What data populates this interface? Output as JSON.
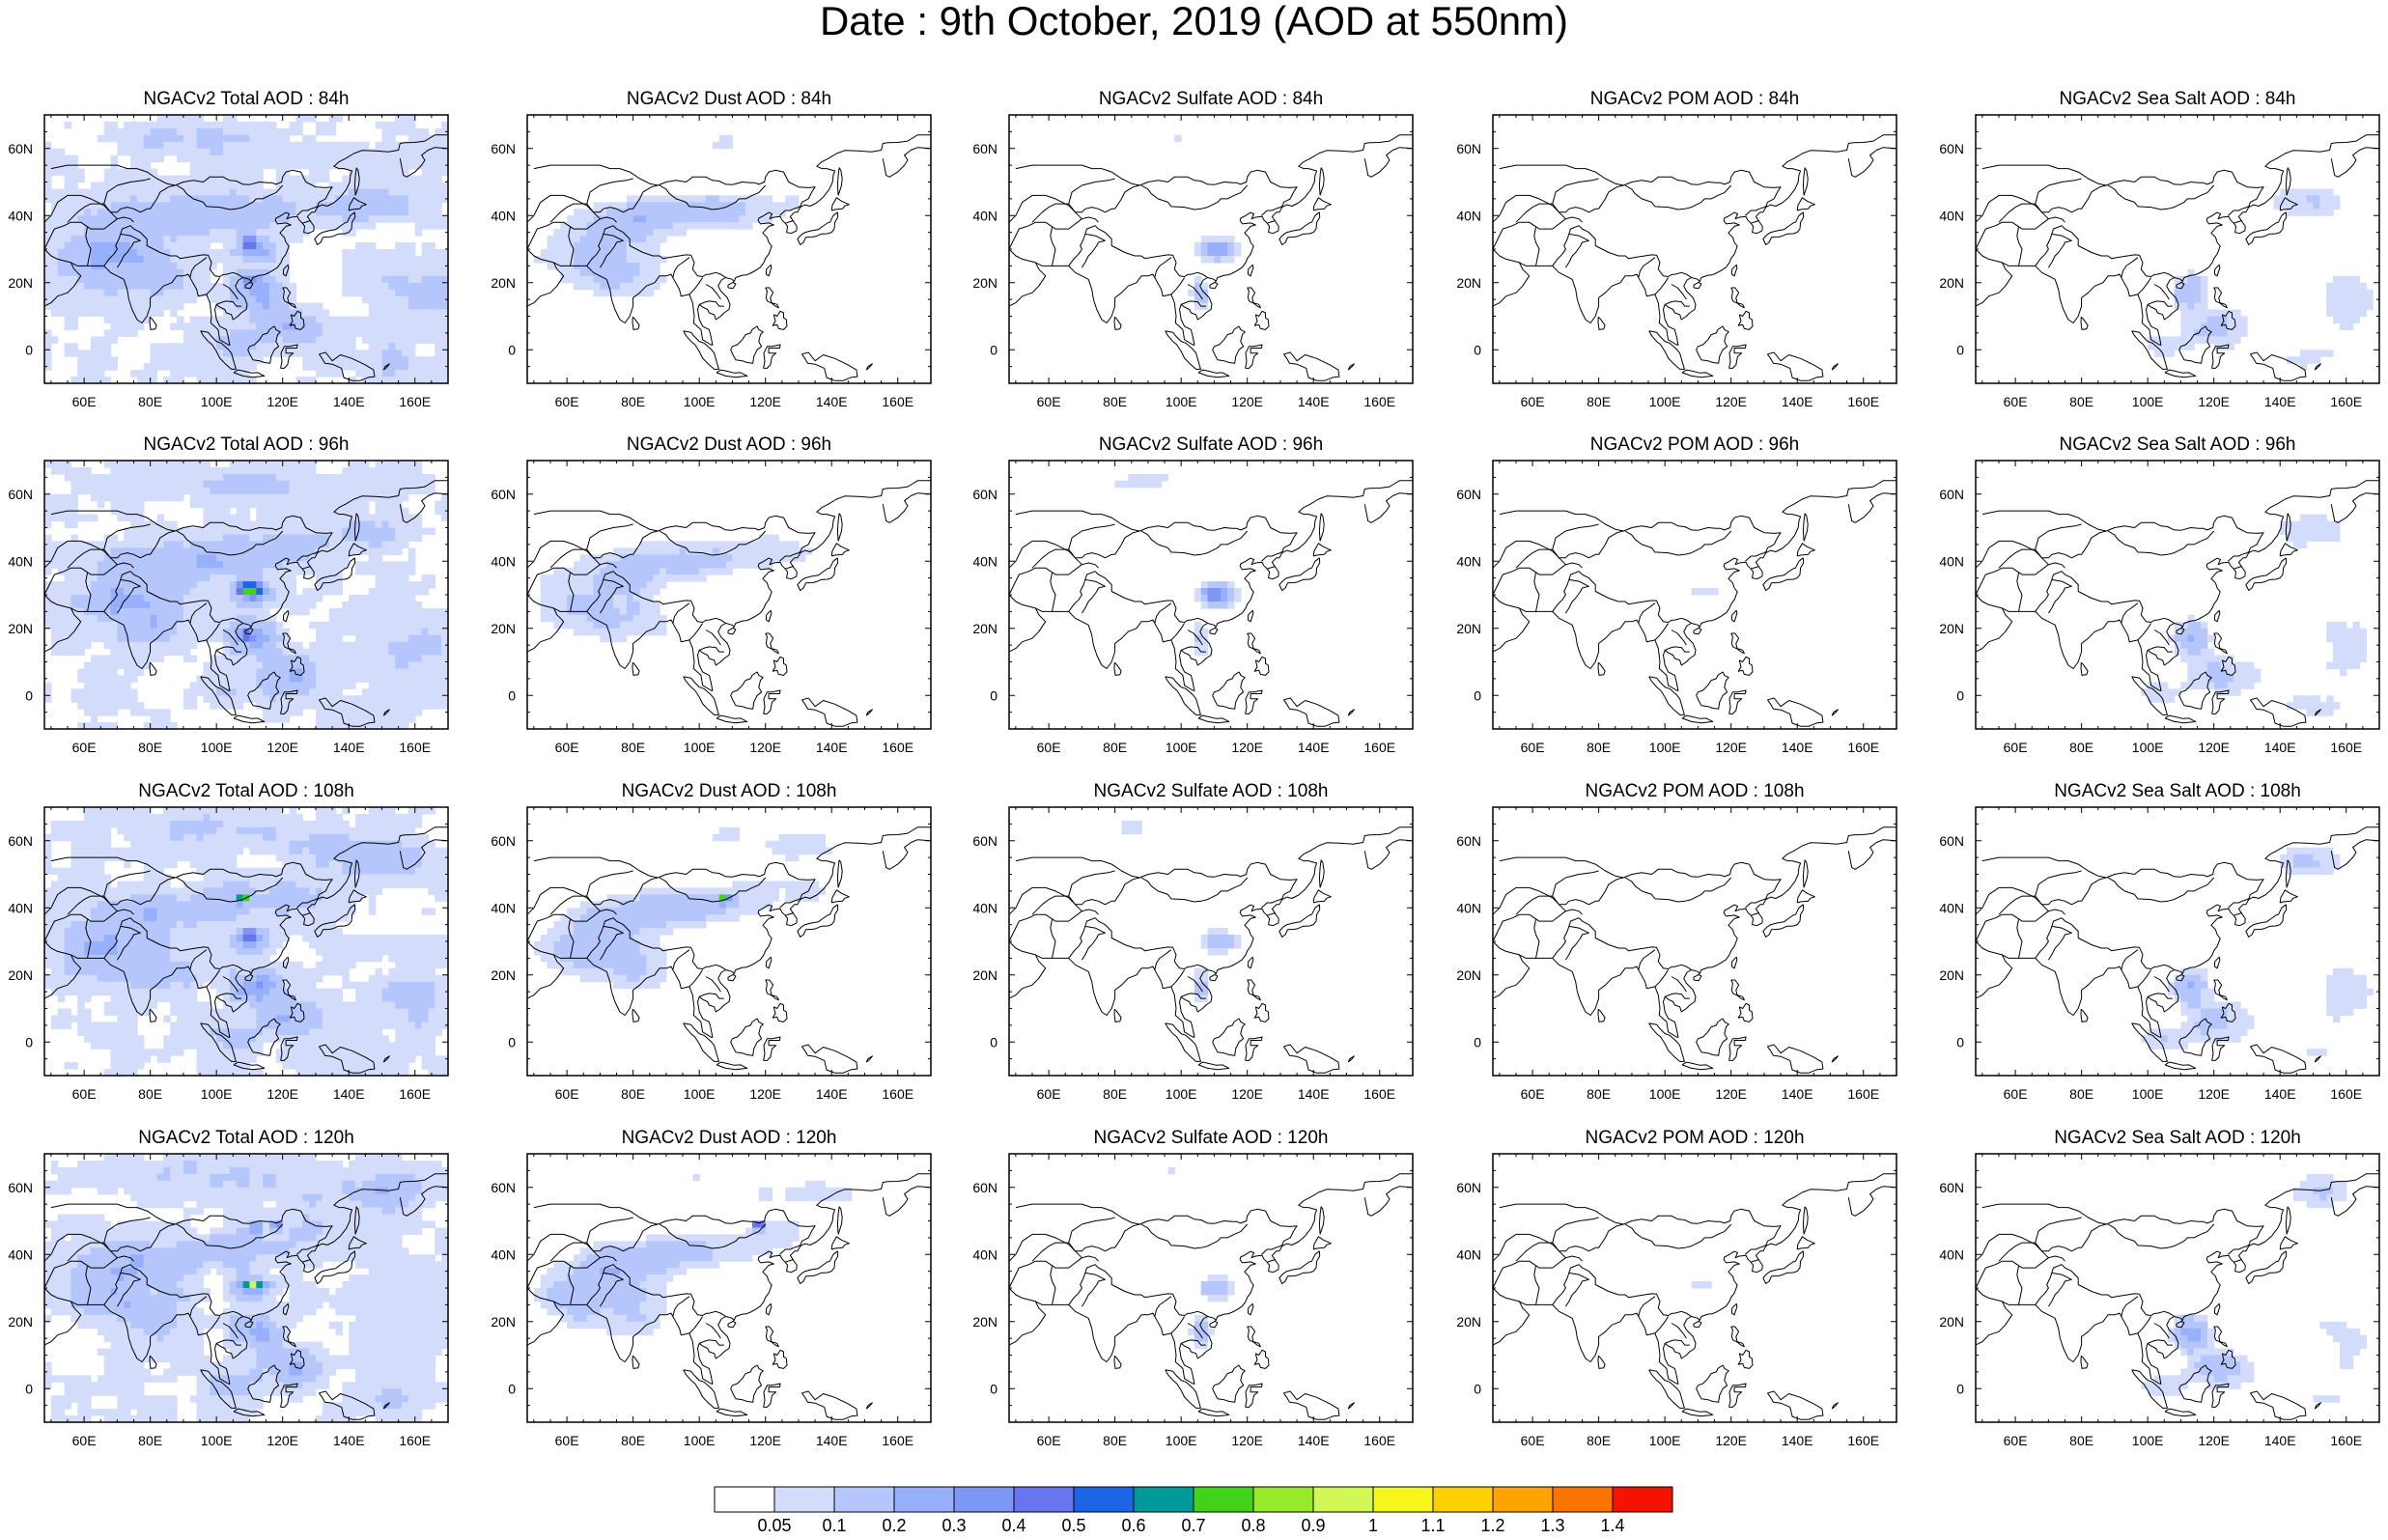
{
  "title": "Date : 9th October, 2019 (AOD at 550nm)",
  "panel_titles": [
    [
      "NGACv2 Total AOD : 84h",
      "NGACv2 Dust AOD : 84h",
      "NGACv2 Sulfate AOD : 84h",
      "NGACv2 POM AOD : 84h",
      "NGACv2 Sea Salt AOD : 84h"
    ],
    [
      "NGACv2 Total AOD : 96h",
      "NGACv2 Dust AOD : 96h",
      "NGACv2 Sulfate AOD : 96h",
      "NGACv2 POM AOD : 96h",
      "NGACv2 Sea Salt AOD : 96h"
    ],
    [
      "NGACv2 Total AOD : 108h",
      "NGACv2 Dust AOD : 108h",
      "NGACv2 Sulfate AOD : 108h",
      "NGACv2 POM AOD : 108h",
      "NGACv2 Sea Salt AOD : 108h"
    ],
    [
      "NGACv2 Total AOD : 120h",
      "NGACv2 Dust AOD : 120h",
      "NGACv2 Sulfate AOD : 120h",
      "NGACv2 POM AOD : 120h",
      "NGACv2 Sea Salt  AOD : 120h"
    ]
  ],
  "map_extent": {
    "lon": [
      48,
      170
    ],
    "lat": [
      -10,
      70
    ]
  },
  "lon_ticks": [
    60,
    80,
    100,
    120,
    140,
    160
  ],
  "lon_tick_labels": [
    "60E",
    "80E",
    "100E",
    "120E",
    "140E",
    "160E"
  ],
  "lat_ticks": [
    0,
    20,
    40,
    60
  ],
  "lat_tick_labels": [
    "0",
    "20N",
    "40N",
    "60N"
  ],
  "colorbar": {
    "colors": [
      "#ffffff",
      "#d3ddfb",
      "#b4c6fb",
      "#98b0fb",
      "#7e97f5",
      "#6875ee",
      "#1e64e6",
      "#009999",
      "#43d21a",
      "#97ea2a",
      "#d1f855",
      "#f6f61a",
      "#fdd000",
      "#fda300",
      "#fc7400",
      "#f61200"
    ],
    "labels": [
      "0.05",
      "0.1",
      "0.2",
      "0.3",
      "0.4",
      "0.5",
      "0.6",
      "0.7",
      "0.8",
      "0.9",
      "1",
      "1.1",
      "1.2",
      "1.3",
      "1.4"
    ]
  }
}
